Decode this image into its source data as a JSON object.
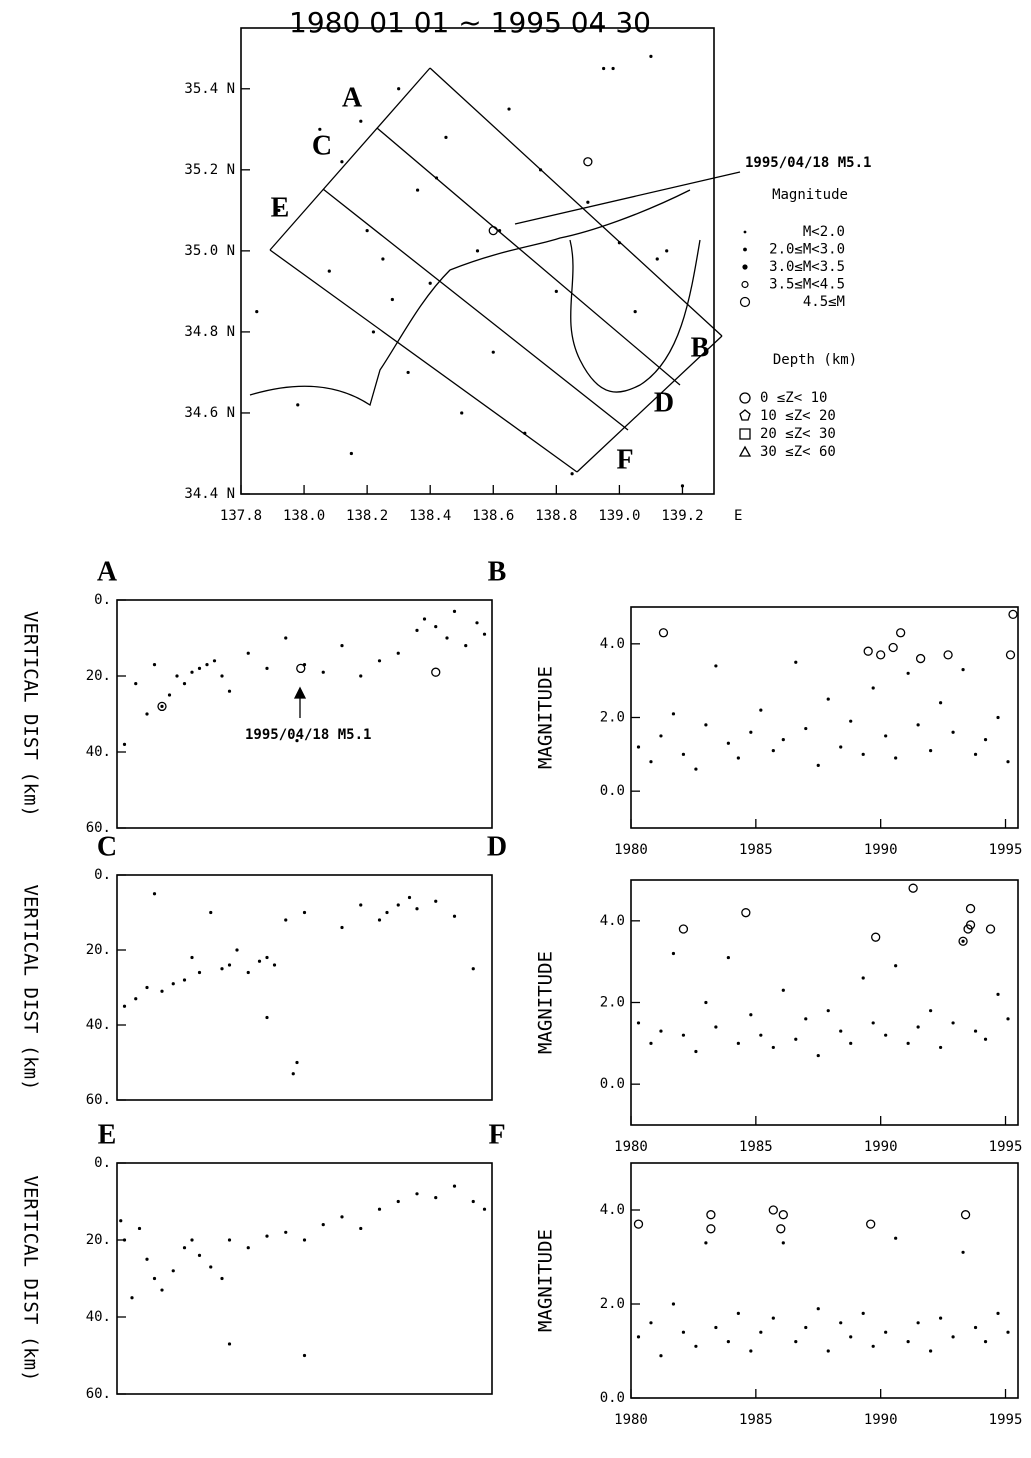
{
  "chart_data": [
    {
      "type": "scatter",
      "title": "1980 01 01 ~ 1995 04 30",
      "color": "#000000",
      "xlim": [
        137.8,
        139.3
      ],
      "xticks": [
        137.8,
        {
          "value": 138,
          "label": "138.0"
        },
        138.2,
        138.4,
        138.6,
        138.8,
        {
          "value": 139,
          "label": "139.0"
        },
        139.2
      ],
      "xlabel": "E",
      "ylim": [
        34.4,
        35.55
      ],
      "yticks": [
        {
          "value": 34.4,
          "label": "34.4 N"
        },
        {
          "value": 34.6,
          "label": "34.6 N"
        },
        {
          "value": 34.8,
          "label": "34.8 N"
        },
        {
          "value": 35.0,
          "label": "35.0 N"
        },
        {
          "value": 35.2,
          "label": "35.2 N"
        },
        {
          "value": 35.4,
          "label": "35.4 N"
        }
      ],
      "x": [
        137.85,
        137.92,
        137.98,
        138.05,
        138.08,
        138.12,
        138.15,
        138.2,
        138.22,
        138.25,
        138.3,
        138.33,
        138.36,
        138.4,
        138.45,
        138.5,
        138.55,
        138.6,
        138.65,
        138.7,
        138.75,
        138.8,
        138.85,
        138.9,
        138.95,
        139.0,
        139.05,
        139.1,
        139.15,
        139.2,
        138.18,
        138.28,
        138.42,
        138.62,
        138.98,
        139.12
      ],
      "y": [
        34.85,
        35.1,
        34.62,
        35.3,
        34.95,
        35.22,
        34.5,
        35.05,
        34.8,
        34.98,
        35.4,
        34.7,
        35.15,
        34.92,
        35.28,
        34.6,
        35.0,
        34.75,
        35.35,
        34.55,
        35.2,
        34.9,
        34.45,
        35.12,
        35.45,
        35.02,
        34.85,
        35.48,
        35.0,
        34.42,
        35.32,
        34.88,
        35.18,
        35.05,
        35.45,
        34.98
      ],
      "large_events": {
        "x": [
          138.6,
          138.9
        ],
        "y": [
          35.05,
          35.22
        ]
      },
      "annotation": "1995/04/18 M5.1",
      "profile_labels": [
        "A",
        "B",
        "C",
        "D",
        "E",
        "F"
      ],
      "legend": {
        "magnitude_title": "Magnitude",
        "magnitude": [
          "M<2.0",
          "2.0≤M<3.0",
          "3.0≤M<3.5",
          "3.5≤M<4.5",
          "4.5≤M"
        ],
        "depth_title": "Depth (km)",
        "depth": [
          "0 ≤Z< 10",
          "10 ≤Z< 20",
          "20 ≤Z< 30",
          "30 ≤Z< 60"
        ]
      }
    },
    {
      "type": "scatter",
      "ylabel": "VERTICAL DIST (km)",
      "corner_labels": [
        "A",
        "B"
      ],
      "xlim": [
        0,
        100
      ],
      "ylim": [
        60,
        0
      ],
      "yticks": [
        {
          "value": 0,
          "label": "0."
        },
        {
          "value": 20,
          "label": "20."
        },
        {
          "value": 40,
          "label": "40."
        },
        {
          "value": 60,
          "label": "60."
        }
      ],
      "x": [
        2,
        5,
        8,
        10,
        12,
        14,
        16,
        18,
        20,
        22,
        24,
        26,
        28,
        30,
        35,
        40,
        45,
        50,
        55,
        60,
        65,
        70,
        75,
        80,
        82,
        85,
        88,
        90,
        93,
        96,
        98,
        48
      ],
      "y": [
        38,
        22,
        30,
        17,
        28,
        25,
        20,
        22,
        19,
        18,
        17,
        16,
        20,
        24,
        14,
        18,
        10,
        17,
        19,
        12,
        20,
        16,
        14,
        8,
        5,
        7,
        10,
        3,
        12,
        6,
        9,
        37
      ],
      "large_events": {
        "x": [
          49,
          12,
          85
        ],
        "y": [
          18,
          28,
          19
        ]
      },
      "annotation": "1995/04/18 M5.1"
    },
    {
      "type": "scatter",
      "ylabel": "VERTICAL DIST (km)",
      "corner_labels": [
        "C",
        "D"
      ],
      "xlim": [
        0,
        100
      ],
      "ylim": [
        60,
        0
      ],
      "yticks": [
        {
          "value": 0,
          "label": "0."
        },
        {
          "value": 20,
          "label": "20."
        },
        {
          "value": 40,
          "label": "40."
        },
        {
          "value": 60,
          "label": "60."
        }
      ],
      "x": [
        2,
        5,
        8,
        10,
        12,
        15,
        18,
        20,
        22,
        25,
        28,
        30,
        32,
        35,
        38,
        40,
        42,
        45,
        48,
        50,
        60,
        65,
        70,
        72,
        75,
        78,
        80,
        85,
        90,
        95,
        40,
        47
      ],
      "y": [
        35,
        33,
        30,
        5,
        31,
        29,
        28,
        22,
        26,
        10,
        25,
        24,
        20,
        26,
        23,
        22,
        24,
        12,
        50,
        10,
        14,
        8,
        12,
        10,
        8,
        6,
        9,
        7,
        11,
        25,
        38,
        53
      ]
    },
    {
      "type": "scatter",
      "ylabel": "VERTICAL DIST (km)",
      "corner_labels": [
        "E",
        "F"
      ],
      "xlim": [
        0,
        100
      ],
      "ylim": [
        60,
        0
      ],
      "yticks": [
        {
          "value": 0,
          "label": "0."
        },
        {
          "value": 20,
          "label": "20."
        },
        {
          "value": 40,
          "label": "40."
        },
        {
          "value": 60,
          "label": "60."
        }
      ],
      "x": [
        1,
        2,
        4,
        6,
        8,
        10,
        12,
        15,
        18,
        20,
        22,
        25,
        28,
        30,
        35,
        40,
        45,
        50,
        55,
        60,
        65,
        70,
        75,
        80,
        85,
        90,
        95,
        98,
        30,
        50
      ],
      "y": [
        15,
        20,
        35,
        17,
        25,
        30,
        33,
        28,
        22,
        20,
        24,
        27,
        30,
        20,
        22,
        19,
        18,
        20,
        16,
        14,
        17,
        12,
        10,
        8,
        9,
        6,
        10,
        12,
        47,
        50
      ]
    },
    {
      "type": "scatter",
      "ylabel": "MAGNITUDE",
      "xlim": [
        1980,
        1995.5
      ],
      "xticks": [
        1980,
        1985,
        1990,
        1995
      ],
      "ylim": [
        -1,
        5
      ],
      "yticks": [
        {
          "value": 0,
          "label": "0.0"
        },
        {
          "value": 2,
          "label": "2.0"
        },
        {
          "value": 4,
          "label": "4.0"
        }
      ],
      "x": [
        1980.3,
        1980.8,
        1981.2,
        1981.7,
        1982.1,
        1982.6,
        1983,
        1983.4,
        1983.9,
        1984.3,
        1984.8,
        1985.2,
        1985.7,
        1986.1,
        1986.6,
        1987,
        1987.5,
        1987.9,
        1988.4,
        1988.8,
        1989.3,
        1989.7,
        1990.2,
        1990.6,
        1991.1,
        1991.5,
        1992,
        1992.4,
        1992.9,
        1993.3,
        1993.8,
        1994.2,
        1994.7,
        1995.1
      ],
      "y": [
        1.2,
        0.8,
        1.5,
        2.1,
        1,
        0.6,
        1.8,
        3.4,
        1.3,
        0.9,
        1.6,
        2.2,
        1.1,
        1.4,
        3.5,
        1.7,
        0.7,
        2.5,
        1.2,
        1.9,
        1,
        2.8,
        1.5,
        0.9,
        3.2,
        1.8,
        1.1,
        2.4,
        1.6,
        3.3,
        1,
        1.4,
        2,
        0.8
      ],
      "large_events": {
        "x": [
          1981.3,
          1989.5,
          1990,
          1990.5,
          1990.8,
          1991.6,
          1992.7,
          1995.2,
          1995.3
        ],
        "y": [
          4.3,
          3.8,
          3.7,
          3.9,
          4.3,
          3.6,
          3.7,
          3.7,
          4.8
        ]
      }
    },
    {
      "type": "scatter",
      "ylabel": "MAGNITUDE",
      "xlim": [
        1980,
        1995.5
      ],
      "xticks": [
        1980,
        1985,
        1990,
        1995
      ],
      "ylim": [
        -1,
        5
      ],
      "yticks": [
        {
          "value": 0,
          "label": "0.0"
        },
        {
          "value": 2,
          "label": "2.0"
        },
        {
          "value": 4,
          "label": "4.0"
        }
      ],
      "x": [
        1980.3,
        1980.8,
        1981.2,
        1981.7,
        1982.1,
        1982.6,
        1983,
        1983.4,
        1983.9,
        1984.3,
        1984.8,
        1985.2,
        1985.7,
        1986.1,
        1986.6,
        1987,
        1987.5,
        1987.9,
        1988.4,
        1988.8,
        1989.3,
        1989.7,
        1990.2,
        1990.6,
        1991.1,
        1991.5,
        1992,
        1992.4,
        1992.9,
        1993.3,
        1993.8,
        1994.2,
        1994.7,
        1995.1
      ],
      "y": [
        1.5,
        1,
        1.3,
        3.2,
        1.2,
        0.8,
        2,
        1.4,
        3.1,
        1,
        1.7,
        1.2,
        0.9,
        2.3,
        1.1,
        1.6,
        0.7,
        1.8,
        1.3,
        1,
        2.6,
        1.5,
        1.2,
        2.9,
        1,
        1.4,
        1.8,
        0.9,
        1.5,
        3.5,
        1.3,
        1.1,
        2.2,
        1.6
      ],
      "large_events": {
        "x": [
          1982.1,
          1984.6,
          1989.8,
          1991.3,
          1993.3,
          1993.6,
          1993.5,
          1993.6,
          1994.4
        ],
        "y": [
          3.8,
          4.2,
          3.6,
          4.8,
          3.5,
          4.3,
          3.8,
          3.9,
          3.8
        ]
      }
    },
    {
      "type": "scatter",
      "ylabel": "MAGNITUDE",
      "xlim": [
        1980,
        1995.5
      ],
      "xticks": [
        1980,
        1985,
        1990,
        1995
      ],
      "ylim": [
        0,
        5
      ],
      "yticks": [
        {
          "value": 0,
          "label": "0.0"
        },
        {
          "value": 2,
          "label": "2.0"
        },
        {
          "value": 4,
          "label": "4.0"
        }
      ],
      "x": [
        1980.3,
        1980.8,
        1981.2,
        1981.7,
        1982.1,
        1982.6,
        1983,
        1983.4,
        1983.9,
        1984.3,
        1984.8,
        1985.2,
        1985.7,
        1986.1,
        1986.6,
        1987,
        1987.5,
        1987.9,
        1988.4,
        1988.8,
        1989.3,
        1989.7,
        1990.2,
        1990.6,
        1991.1,
        1991.5,
        1992,
        1992.4,
        1992.9,
        1993.3,
        1993.8,
        1994.2,
        1994.7,
        1995.1
      ],
      "y": [
        1.3,
        1.6,
        0.9,
        2,
        1.4,
        1.1,
        3.3,
        1.5,
        1.2,
        1.8,
        1,
        1.4,
        1.7,
        3.3,
        1.2,
        1.5,
        1.9,
        1,
        1.6,
        1.3,
        1.8,
        1.1,
        1.4,
        3.4,
        1.2,
        1.6,
        1,
        1.7,
        1.3,
        3.1,
        1.5,
        1.2,
        1.8,
        1.4
      ],
      "large_events": {
        "x": [
          1980.3,
          1983.2,
          1983.2,
          1985.7,
          1986,
          1986.1,
          1989.6,
          1993.4
        ],
        "y": [
          3.7,
          3.9,
          3.6,
          4,
          3.6,
          3.9,
          3.7,
          3.9
        ]
      }
    }
  ]
}
